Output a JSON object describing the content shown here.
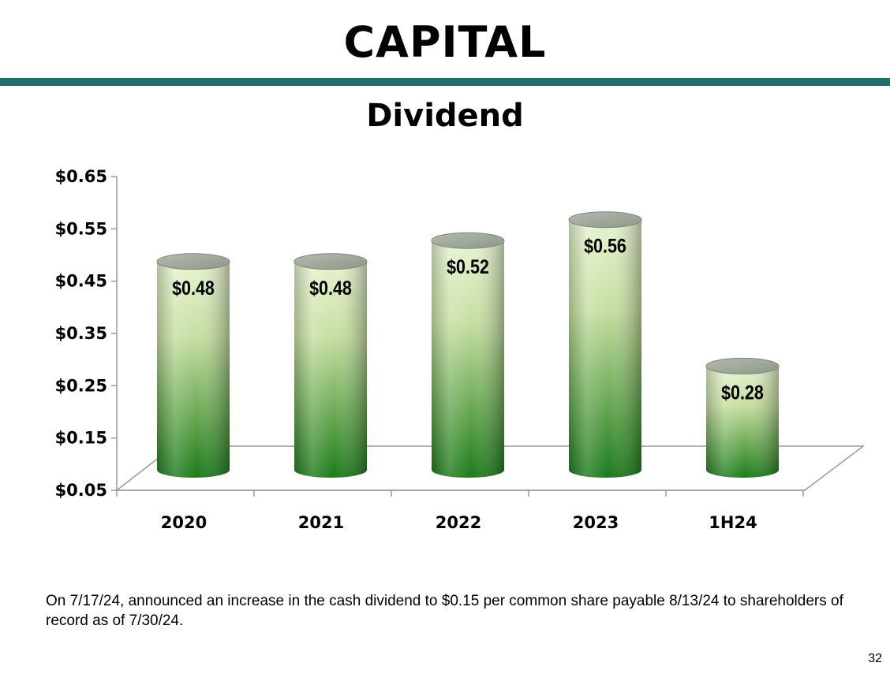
{
  "page": {
    "title": "CAPITAL",
    "footnote": "On 7/17/24, announced an increase in the cash dividend to $0.15 per common share payable 8/13/24 to shareholders of record as of 7/30/24.",
    "page_number": "32"
  },
  "colors": {
    "rule": "#236f6a",
    "bar_top": "#e6f3cf",
    "bar_bottom": "#1c7a1c"
  },
  "chart_data": {
    "type": "bar",
    "title": "Dividend",
    "categories": [
      "2020",
      "2021",
      "2022",
      "2023",
      "1H24"
    ],
    "series": [
      {
        "values": [
          0.48,
          0.48,
          0.52,
          0.56,
          0.28
        ],
        "data_labels": [
          "$0.48",
          "$0.48",
          "$0.52",
          "$0.56",
          "$0.28"
        ]
      }
    ],
    "ylim": [
      0.05,
      0.65
    ],
    "yticks": [
      0.05,
      0.15,
      0.25,
      0.35,
      0.45,
      0.55,
      0.65
    ],
    "ytick_labels": [
      "$0.05",
      "$0.15",
      "$0.25",
      "$0.35",
      "$0.45",
      "$0.55",
      "$0.65"
    ],
    "style": "3d-cylinder",
    "legend": "none",
    "grid": false
  }
}
